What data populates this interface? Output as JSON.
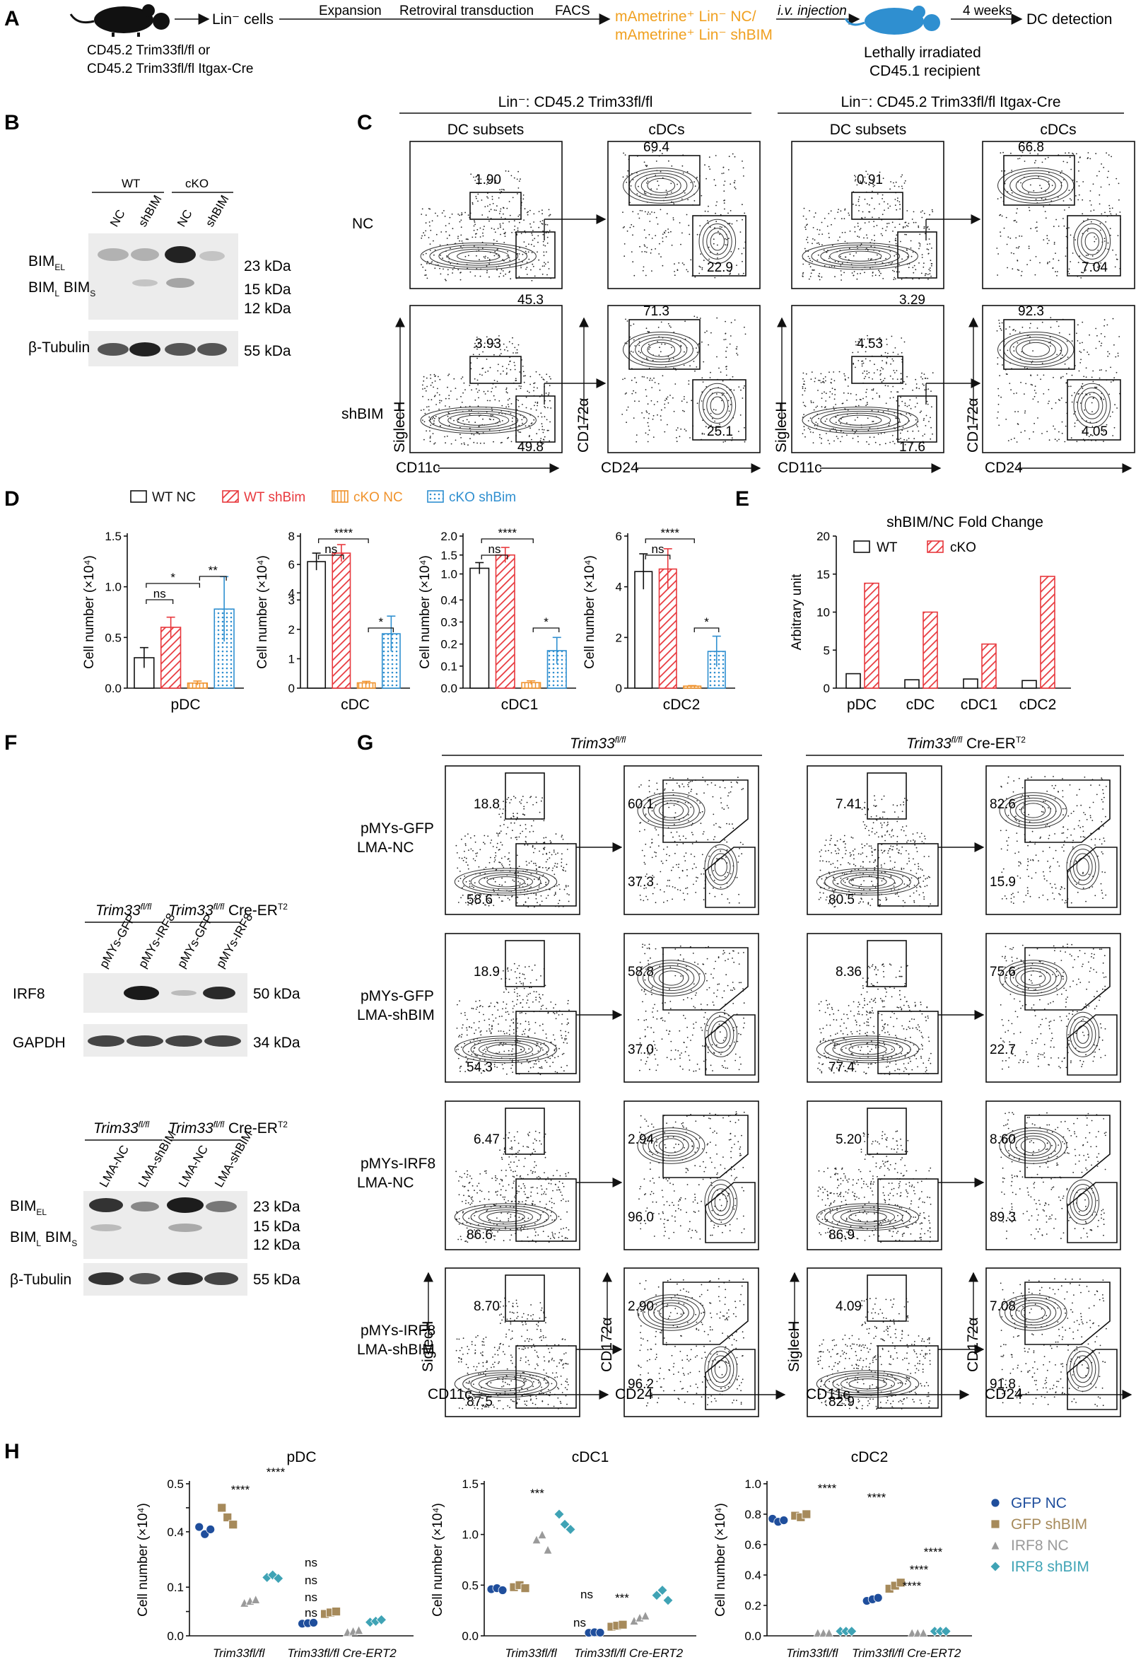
{
  "panels": {
    "A": "A",
    "B": "B",
    "C": "C",
    "D": "D",
    "E": "E",
    "F": "F",
    "G": "G",
    "H": "H"
  },
  "panelA": {
    "donor_line1": "CD45.2 Trim33fl/fl or",
    "donor_line2": "CD45.2 Trim33fl/fl Itgax-Cre",
    "lin_cells": "Lin⁻ cells",
    "steps": [
      "Expansion",
      "Retroviral transduction",
      "FACS",
      "i.v. injection",
      "4 weeks"
    ],
    "sorted_line1": "mAmetrine⁺ Lin⁻ NC/",
    "sorted_line2": "mAmetrine⁺ Lin⁻ shBIM",
    "recipient_line1": "Lethally irradiated",
    "recipient_line2": "CD45.1 recipient",
    "readout": "DC detection"
  },
  "panelB": {
    "groups": [
      "WT",
      "cKO"
    ],
    "lanes": [
      "NC",
      "shBIM",
      "NC",
      "shBIM"
    ],
    "bands": [
      "BIM_EL",
      "BIM_L BIM_S",
      "β-Tubulin"
    ],
    "sizes": [
      "23 kDa",
      "15 kDa",
      "12 kDa",
      "55 kDa"
    ]
  },
  "panelC": {
    "group1": "Lin⁻: CD45.2 Trim33fl/fl",
    "group2": "Lin⁻: CD45.2 Trim33fl/fl Itgax-Cre",
    "col_dc": "DC subsets",
    "col_cdc": "cDCs",
    "rows": [
      "NC",
      "shBIM"
    ],
    "axes": {
      "siglech": "SiglecH",
      "cd11c": "CD11c",
      "cd172": "CD172α",
      "cd24": "CD24"
    },
    "gates": [
      {
        "pdc": "1.90",
        "cdc": "45.3",
        "cdc2": "69.4",
        "cdc1": "22.9"
      },
      {
        "pdc": "0.91",
        "cdc": "3.29",
        "cdc2": "66.8",
        "cdc1": "7.04"
      },
      {
        "pdc": "3.93",
        "cdc": "49.8",
        "cdc2": "71.3",
        "cdc1": "25.1"
      },
      {
        "pdc": "4.53",
        "cdc": "17.6",
        "cdc2": "92.3",
        "cdc1": "4.05"
      }
    ]
  },
  "panelD": {
    "legend": [
      "WT NC",
      "WT shBim",
      "cKO NC",
      "cKO shBim"
    ],
    "colors": [
      "#111111",
      "#e8383d",
      "#f0922b",
      "#2f8fd0"
    ],
    "ylabel": "Cell number (×10⁴)",
    "stats": [
      "*",
      "ns",
      "**",
      "****",
      "ns",
      "*",
      "****",
      "ns",
      "*",
      "****",
      "ns",
      "*"
    ]
  },
  "panelE": {
    "title": "shBIM/NC Fold Change",
    "legend": [
      "WT",
      "cKO"
    ],
    "ylabel": "Arbitrary unit"
  },
  "panelF": {
    "blot1_groups": [
      "Trim33fl/fl",
      "Trim33fl/fl Cre-ERT2"
    ],
    "blot1_lanes": [
      "pMYs-GFP",
      "pMYs-IRF8",
      "pMYs-GFP",
      "pMYs-IRF8"
    ],
    "blot1_bands": [
      "IRF8",
      "GAPDH"
    ],
    "blot1_sizes": [
      "50 kDa",
      "34 kDa"
    ],
    "blot2_groups": [
      "Trim33fl/fl",
      "Trim33fl/fl Cre-ERT2"
    ],
    "blot2_lanes": [
      "LMA-NC",
      "LMA-shBIM",
      "LMA-NC",
      "LMA-shBIM"
    ],
    "blot2_bands": [
      "BIM_EL",
      "BIM_L BIM_S",
      "β-Tubulin"
    ],
    "blot2_sizes": [
      "23 kDa",
      "15 kDa",
      "12 kDa",
      "55 kDa"
    ]
  },
  "panelG": {
    "group1": "Trim33fl/fl",
    "group2": "Trim33fl/fl Cre-ERT2",
    "rows": [
      {
        "l1": "pMYs-GFP",
        "l2": "LMA-NC"
      },
      {
        "l1": "pMYs-GFP",
        "l2": "LMA-shBIM"
      },
      {
        "l1": "pMYs-IRF8",
        "l2": "LMA-NC"
      },
      {
        "l1": "pMYs-IRF8",
        "l2": "LMA-shBIM"
      }
    ],
    "gates": [
      [
        "18.8",
        "58.6",
        "60.1",
        "37.3",
        "7.41",
        "80.5",
        "82.6",
        "15.9"
      ],
      [
        "18.9",
        "54.3",
        "58.8",
        "37.0",
        "8.36",
        "77.4",
        "75.6",
        "22.7"
      ],
      [
        "6.47",
        "86.6",
        "2.94",
        "96.0",
        "5.20",
        "86.9",
        "8.60",
        "89.3"
      ],
      [
        "8.70",
        "87.5",
        "2.90",
        "96.2",
        "4.09",
        "82.9",
        "7.08",
        "91.8"
      ]
    ],
    "axes": {
      "siglech": "SiglecH",
      "cd11c": "CD11c",
      "cd172": "CD172α",
      "cd24": "CD24"
    }
  },
  "panelH": {
    "legend": [
      "GFP NC",
      "GFP shBIM",
      "IRF8 NC",
      "IRF8 shBIM"
    ],
    "colors": [
      "#1f4e9c",
      "#a68a5b",
      "#9a9a9a",
      "#3fa3b5"
    ],
    "ylabel": "Cell number (×10⁴)",
    "xgroups": [
      "Trim33fl/fl",
      "Trim33fl/fl Cre-ERT2"
    ],
    "stats": [
      "****",
      "****",
      "ns",
      "ns",
      "ns",
      "ns",
      "***",
      "ns",
      "ns",
      "***",
      "****",
      "****",
      "****",
      "****",
      "****"
    ]
  },
  "chart_data": [
    {
      "type": "bar",
      "title": "pDC",
      "ylabel": "Cell number (×10⁴)",
      "categories": [
        "WT NC",
        "WT shBim",
        "cKO NC",
        "cKO shBim"
      ],
      "values": [
        0.3,
        0.6,
        0.05,
        0.78
      ],
      "errors": [
        0.1,
        0.1,
        0.02,
        0.32
      ],
      "ylim": [
        0,
        1.5
      ]
    },
    {
      "type": "bar",
      "title": "cDC",
      "ylabel": "Cell number (×10⁴)",
      "categories": [
        "WT NC",
        "WT shBim",
        "cKO NC",
        "cKO shBim"
      ],
      "values": [
        6.2,
        6.8,
        0.18,
        1.85
      ],
      "errors": [
        0.6,
        0.6,
        0.05,
        0.6
      ],
      "ylim": [
        0,
        8
      ],
      "axis_break": [
        3,
        4
      ]
    },
    {
      "type": "bar",
      "title": "cDC1",
      "ylabel": "Cell number (×10⁴)",
      "categories": [
        "WT NC",
        "WT shBim",
        "cKO NC",
        "cKO shBim"
      ],
      "values": [
        1.15,
        1.5,
        0.025,
        0.17
      ],
      "errors": [
        0.15,
        0.2,
        0.008,
        0.06
      ],
      "ylim": [
        0,
        2.0
      ],
      "axis_break": [
        0.4,
        0.5
      ]
    },
    {
      "type": "bar",
      "title": "cDC2",
      "ylabel": "Cell number (×10⁴)",
      "categories": [
        "WT NC",
        "WT shBim",
        "cKO NC",
        "cKO shBim"
      ],
      "values": [
        4.6,
        4.7,
        0.08,
        1.45
      ],
      "errors": [
        0.7,
        0.8,
        0.02,
        0.6
      ],
      "ylim": [
        0,
        6
      ]
    },
    {
      "type": "bar",
      "title": "shBIM/NC Fold Change",
      "ylabel": "Arbitrary unit",
      "categories": [
        "pDC",
        "cDC",
        "cDC1",
        "cDC2"
      ],
      "series": [
        {
          "name": "WT",
          "values": [
            1.9,
            1.1,
            1.2,
            1.0
          ]
        },
        {
          "name": "cKO",
          "values": [
            13.8,
            10.0,
            5.8,
            14.7
          ]
        }
      ],
      "ylim": [
        0,
        20
      ]
    },
    {
      "type": "scatter",
      "title": "pDC",
      "ylabel": "Cell number (×10⁴)",
      "groups": [
        "Trim33fl/fl",
        "Trim33fl/fl Cre-ERT2"
      ],
      "series": [
        {
          "name": "GFP NC",
          "values": [
            [
              0.41,
              0.395,
              0.405
            ],
            [
              0.025,
              0.026,
              0.027
            ]
          ]
        },
        {
          "name": "GFP shBIM",
          "values": [
            [
              0.45,
              0.43,
              0.415
            ],
            [
              0.045,
              0.048,
              0.05
            ]
          ]
        },
        {
          "name": "IRF8 NC",
          "values": [
            [
              0.068,
              0.072,
              0.075
            ],
            [
              0.008,
              0.01,
              0.012
            ]
          ]
        },
        {
          "name": "IRF8 shBIM",
          "values": [
            [
              0.12,
              0.125,
              0.118
            ],
            [
              0.028,
              0.03,
              0.033
            ]
          ]
        }
      ],
      "ylim": [
        0,
        0.5
      ],
      "axis_break": [
        0.15,
        0.35
      ]
    },
    {
      "type": "scatter",
      "title": "cDC1",
      "ylabel": "Cell number (×10⁴)",
      "groups": [
        "Trim33fl/fl",
        "Trim33fl/fl Cre-ERT2"
      ],
      "series": [
        {
          "name": "GFP NC",
          "values": [
            [
              0.46,
              0.47,
              0.45
            ],
            [
              0.03,
              0.035,
              0.032
            ]
          ]
        },
        {
          "name": "GFP shBIM",
          "values": [
            [
              0.48,
              0.5,
              0.47
            ],
            [
              0.09,
              0.1,
              0.11
            ]
          ]
        },
        {
          "name": "IRF8 NC",
          "values": [
            [
              0.95,
              1.0,
              0.85
            ],
            [
              0.15,
              0.18,
              0.2
            ]
          ]
        },
        {
          "name": "IRF8 shBIM",
          "values": [
            [
              1.2,
              1.1,
              1.05
            ],
            [
              0.4,
              0.45,
              0.35
            ]
          ]
        }
      ],
      "ylim": [
        0,
        1.5
      ]
    },
    {
      "type": "scatter",
      "title": "cDC2",
      "ylabel": "Cell number (×10⁴)",
      "groups": [
        "Trim33fl/fl",
        "Trim33fl/fl Cre-ERT2"
      ],
      "series": [
        {
          "name": "GFP NC",
          "values": [
            [
              0.77,
              0.75,
              0.76
            ],
            [
              0.23,
              0.24,
              0.25
            ]
          ]
        },
        {
          "name": "GFP shBIM",
          "values": [
            [
              0.79,
              0.78,
              0.8
            ],
            [
              0.31,
              0.33,
              0.35
            ]
          ]
        },
        {
          "name": "IRF8 NC",
          "values": [
            [
              0.02,
              0.02,
              0.02
            ],
            [
              0.02,
              0.02,
              0.02
            ]
          ]
        },
        {
          "name": "IRF8 shBIM",
          "values": [
            [
              0.03,
              0.03,
              0.03
            ],
            [
              0.03,
              0.03,
              0.03
            ]
          ]
        }
      ],
      "ylim": [
        0,
        1.0
      ]
    }
  ]
}
